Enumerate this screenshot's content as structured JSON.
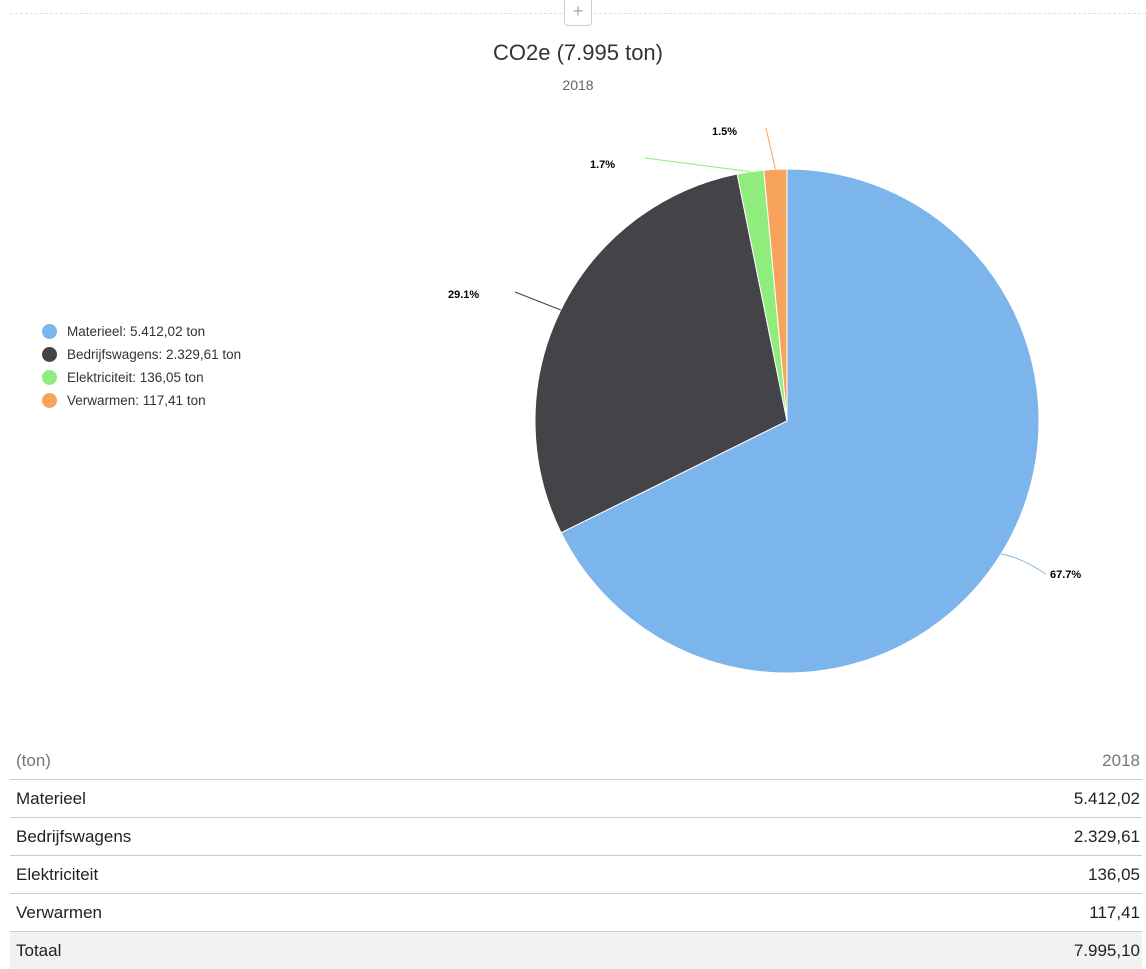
{
  "header": {
    "expand_icon": "plus-icon",
    "expand_glyph": "+"
  },
  "chart_data": {
    "type": "pie",
    "title": "CO2e (7.995 ton)",
    "subtitle": "2018",
    "legend_position": "left",
    "slices": [
      {
        "name": "Materieel",
        "value": 5412.02,
        "percent_label": "67.7%",
        "legend_label": "Materieel: 5.412,02 ton",
        "color": "#7cb5ec"
      },
      {
        "name": "Bedrijfswagens",
        "value": 2329.61,
        "percent_label": "29.1%",
        "legend_label": "Bedrijfswagens: 2.329,61 ton",
        "color": "#434348"
      },
      {
        "name": "Elektriciteit",
        "value": 136.05,
        "percent_label": "1.7%",
        "legend_label": "Elektriciteit: 136,05 ton",
        "color": "#90ed7d"
      },
      {
        "name": "Verwarmen",
        "value": 117.41,
        "percent_label": "1.5%",
        "legend_label": "Verwarmen: 117,41 ton",
        "color": "#f7a35c"
      }
    ]
  },
  "table": {
    "unit_header": "(ton)",
    "year_header": "2018",
    "rows": [
      {
        "label": "Materieel",
        "value": "5.412,02"
      },
      {
        "label": "Bedrijfswagens",
        "value": "2.329,61"
      },
      {
        "label": "Elektriciteit",
        "value": "136,05"
      },
      {
        "label": "Verwarmen",
        "value": "117,41"
      }
    ],
    "total": {
      "label": "Totaal",
      "value": "7.995,10"
    }
  }
}
